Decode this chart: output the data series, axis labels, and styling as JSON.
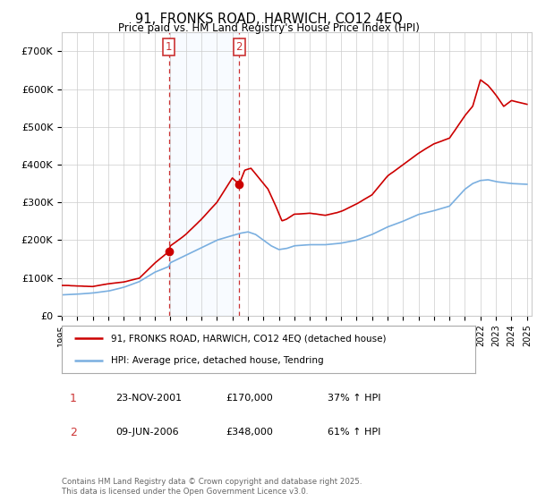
{
  "title": "91, FRONKS ROAD, HARWICH, CO12 4EQ",
  "subtitle": "Price paid vs. HM Land Registry's House Price Index (HPI)",
  "ylim": [
    0,
    750000
  ],
  "yticks": [
    0,
    100000,
    200000,
    300000,
    400000,
    500000,
    600000,
    700000
  ],
  "ytick_labels": [
    "£0",
    "£100K",
    "£200K",
    "£300K",
    "£400K",
    "£500K",
    "£600K",
    "£700K"
  ],
  "sale1_date": 2001.9,
  "sale1_price": 170000,
  "sale1_label": "1",
  "sale2_date": 2006.44,
  "sale2_price": 348000,
  "sale2_label": "2",
  "legend_line1": "91, FRONKS ROAD, HARWICH, CO12 4EQ (detached house)",
  "legend_line2": "HPI: Average price, detached house, Tendring",
  "table_row1": [
    "1",
    "23-NOV-2001",
    "£170,000",
    "37% ↑ HPI"
  ],
  "table_row2": [
    "2",
    "09-JUN-2006",
    "£348,000",
    "61% ↑ HPI"
  ],
  "footer": "Contains HM Land Registry data © Crown copyright and database right 2025.\nThis data is licensed under the Open Government Licence v3.0.",
  "line_color_red": "#cc0000",
  "line_color_blue": "#7aafe0",
  "shade_color": "#ddeeff",
  "vline_color": "#cc3333",
  "grid_color": "#cccccc",
  "background_color": "#ffffff"
}
